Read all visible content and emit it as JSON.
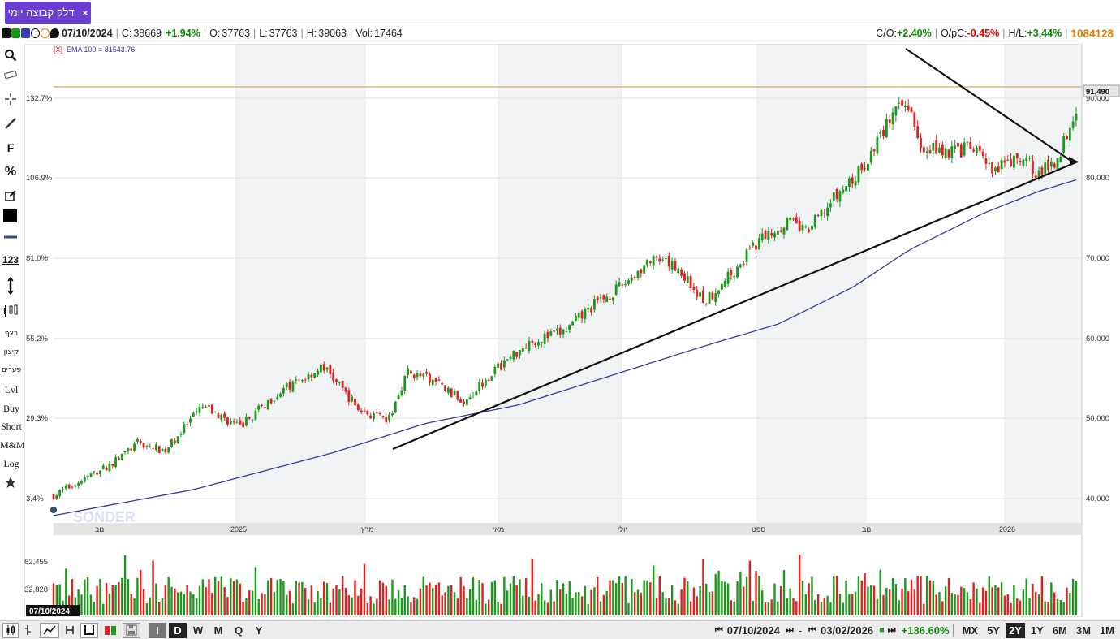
{
  "tab": {
    "title": "דלק קבוצה יומי",
    "close": "×"
  },
  "info": {
    "date": "07/10/2024",
    "close_label": "C:",
    "close": "38669",
    "change": "+1.94%",
    "open_label": "O:",
    "open": "37763",
    "low_label": "L:",
    "low": "37763",
    "high_label": "H:",
    "high": "39063",
    "vol_label": "Vol:",
    "vol": "17464",
    "co_label": "C/O:",
    "co": "+2.40%",
    "opc_label": "O/pC:",
    "opc": "-0.45%",
    "hl_label": "H/L:",
    "hl": "+3.44%",
    "total": "1084128"
  },
  "toolbar": {
    "percent": "%",
    "fib": "F",
    "num": "123",
    "heb1": "רצף",
    "heb2": "קיצון",
    "heb3": "פערים",
    "lvl": "Lvl",
    "buy": "Buy",
    "short": "Short",
    "mm": "M&M",
    "log": "Log"
  },
  "chart": {
    "ema_tag": "[X]",
    "ema_label": "EMA 100 = 81543.76",
    "current_price": "91,490",
    "cursor_date": "07/10/2024",
    "left_pct_labels": [
      "132.7%",
      "106.9%",
      "81.0%",
      "55.2%",
      "29.3%",
      "3.4%"
    ],
    "right_price_labels": [
      "90,000",
      "80,000",
      "70,000",
      "60,000",
      "50,000",
      "40,000"
    ],
    "vol_labels": [
      "62,455",
      "32,828"
    ],
    "time_labels": [
      "נוב",
      "2025",
      "מרץ",
      "מאי",
      "יולי",
      "ספט",
      "נוב",
      "2026"
    ]
  },
  "colors": {
    "up": "#1a9a1a",
    "down": "#e02020",
    "ema": "#3a3a9a",
    "accent": "#6a3fd0",
    "hline": "#c9983a"
  },
  "chart_data": {
    "type": "candlestick",
    "start_date": "07/10/2024",
    "end_date": "03/02/2026",
    "ylim": [
      35000,
      100000
    ],
    "price_path": [
      [
        0,
        38669
      ],
      [
        0.03,
        40800
      ],
      [
        0.06,
        42800
      ],
      [
        0.09,
        45800
      ],
      [
        0.12,
        44800
      ],
      [
        0.16,
        50800
      ],
      [
        0.2,
        48000
      ],
      [
        0.24,
        52500
      ],
      [
        0.29,
        56200
      ],
      [
        0.33,
        50200
      ],
      [
        0.36,
        48800
      ],
      [
        0.38,
        55500
      ],
      [
        0.41,
        54200
      ],
      [
        0.44,
        51500
      ],
      [
        0.47,
        55200
      ],
      [
        0.51,
        59500
      ],
      [
        0.55,
        61000
      ],
      [
        0.58,
        64500
      ],
      [
        0.61,
        67000
      ],
      [
        0.64,
        70500
      ],
      [
        0.67,
        69800
      ],
      [
        0.7,
        65000
      ],
      [
        0.73,
        69000
      ],
      [
        0.76,
        73500
      ],
      [
        0.79,
        76000
      ],
      [
        0.81,
        74500
      ],
      [
        0.84,
        79000
      ],
      [
        0.87,
        83000
      ],
      [
        0.9,
        90000
      ],
      [
        0.92,
        92000
      ],
      [
        0.93,
        86500
      ],
      [
        0.96,
        85500
      ],
      [
        0.99,
        85800
      ],
      [
        1.01,
        82500
      ],
      [
        1.03,
        84000
      ],
      [
        1.05,
        83800
      ],
      [
        1.06,
        82200
      ],
      [
        1.08,
        84500
      ],
      [
        1.1,
        91490
      ]
    ],
    "ema_path": [
      [
        0,
        36000
      ],
      [
        0.15,
        39500
      ],
      [
        0.3,
        44500
      ],
      [
        0.4,
        48500
      ],
      [
        0.5,
        51000
      ],
      [
        0.6,
        55000
      ],
      [
        0.7,
        59000
      ],
      [
        0.78,
        62000
      ],
      [
        0.86,
        67000
      ],
      [
        0.92,
        72000
      ],
      [
        1.0,
        77000
      ],
      [
        1.06,
        80000
      ],
      [
        1.1,
        81544
      ]
    ],
    "volume_max": 70000
  },
  "bottom": {
    "btn_i": "I",
    "btn_d": "D",
    "btn_w": "W",
    "btn_m": "M",
    "btn_q": "Q",
    "btn_y": "Y",
    "from_date": "07/10/2024",
    "to_date": "03/02/2026",
    "pct": "+136.60%",
    "r_mx": "MX",
    "r_5y": "5Y",
    "r_2y": "2Y",
    "r_1y": "1Y",
    "r_6m": "6M",
    "r_3m": "3M",
    "r_1m": "1M"
  }
}
